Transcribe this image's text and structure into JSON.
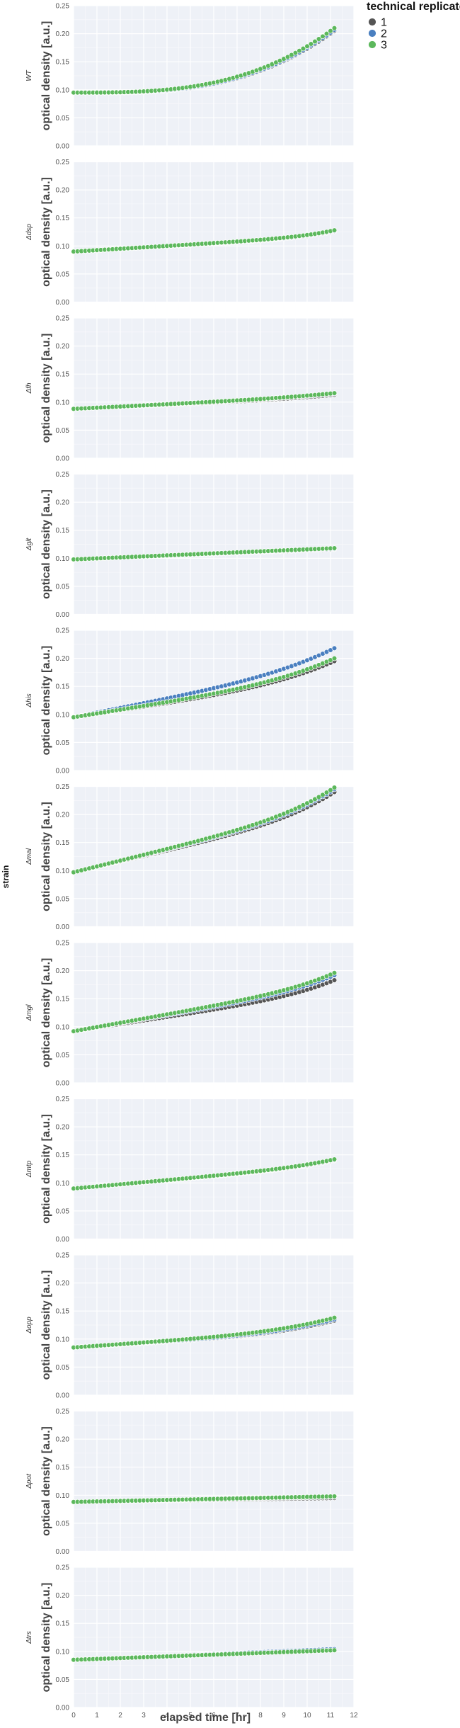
{
  "chart_data": {
    "type": "scatter",
    "xlabel": "elapsed time [hr]",
    "ylabel": "optical density [a.u.]",
    "facet_label": "strain",
    "xlim": [
      0,
      12
    ],
    "ylim": [
      0,
      0.25
    ],
    "x_ticks": [
      "0",
      "1",
      "2",
      "3",
      "4",
      "5",
      "6",
      "7",
      "8",
      "9",
      "10",
      "11",
      "12"
    ],
    "y_ticks": [
      "0.00",
      "0.05",
      "0.10",
      "0.15",
      "0.20",
      "0.25"
    ],
    "grid": true,
    "legend": {
      "title": "technical replicate",
      "placement": "top-right",
      "entries": [
        {
          "name": "1",
          "color": "#555555"
        },
        {
          "name": "2",
          "color": "#4a7fc0"
        },
        {
          "name": "3",
          "color": "#5cb85c"
        }
      ]
    },
    "panels": [
      {
        "strain": "WT",
        "curves": [
          [
            0.095,
            0.115,
            1.0,
            0.205
          ],
          [
            0.095,
            0.115,
            1.0,
            0.207
          ],
          [
            0.095,
            0.115,
            1.0,
            0.21
          ]
        ]
      },
      {
        "strain": "Δdsp",
        "curves": [
          [
            0.09,
            0.01,
            2.4,
            0.126
          ],
          [
            0.09,
            0.01,
            2.4,
            0.127
          ],
          [
            0.09,
            0.01,
            2.4,
            0.128
          ]
        ]
      },
      {
        "strain": "Δfh",
        "curves": [
          [
            0.088,
            0.005,
            1.5,
            0.113
          ],
          [
            0.088,
            0.005,
            1.5,
            0.115
          ],
          [
            0.088,
            0.005,
            1.5,
            0.116
          ]
        ]
      },
      {
        "strain": "Δglt",
        "curves": [
          [
            0.098,
            0.0,
            1.0,
            0.116
          ],
          [
            0.098,
            0.0,
            1.0,
            0.117
          ],
          [
            0.098,
            0.0,
            1.0,
            0.118
          ]
        ]
      },
      {
        "strain": "Δhis",
        "curves": [
          [
            0.095,
            0.03,
            1.5,
            0.195
          ],
          [
            0.095,
            0.03,
            1.5,
            0.218
          ],
          [
            0.095,
            0.03,
            1.5,
            0.2
          ]
        ]
      },
      {
        "strain": "Δmal",
        "curves": [
          [
            0.097,
            0.035,
            1.8,
            0.24
          ],
          [
            0.097,
            0.035,
            1.8,
            0.245
          ],
          [
            0.097,
            0.035,
            1.8,
            0.248
          ]
        ]
      },
      {
        "strain": "Δmgl",
        "curves": [
          [
            0.092,
            0.02,
            2.0,
            0.183
          ],
          [
            0.092,
            0.02,
            2.0,
            0.192
          ],
          [
            0.092,
            0.02,
            2.0,
            0.196
          ]
        ]
      },
      {
        "strain": "Δmtp",
        "curves": [
          [
            0.09,
            0.01,
            2.0,
            0.14
          ],
          [
            0.09,
            0.01,
            2.0,
            0.141
          ],
          [
            0.09,
            0.01,
            2.0,
            0.142
          ]
        ]
      },
      {
        "strain": "Δopp",
        "curves": [
          [
            0.085,
            0.02,
            1.5,
            0.133
          ],
          [
            0.085,
            0.02,
            1.5,
            0.135
          ],
          [
            0.085,
            0.02,
            1.5,
            0.138
          ]
        ]
      },
      {
        "strain": "Δpot",
        "curves": [
          [
            0.088,
            0.0,
            2.5,
            0.095
          ],
          [
            0.088,
            0.0,
            2.5,
            0.097
          ],
          [
            0.088,
            0.0,
            2.5,
            0.098
          ]
        ]
      },
      {
        "strain": "Δtrs",
        "curves": [
          [
            0.085,
            0.0,
            1.0,
            0.103
          ],
          [
            0.085,
            0.0,
            1.0,
            0.104
          ],
          [
            0.085,
            0.0,
            1.0,
            0.102
          ]
        ]
      }
    ]
  }
}
